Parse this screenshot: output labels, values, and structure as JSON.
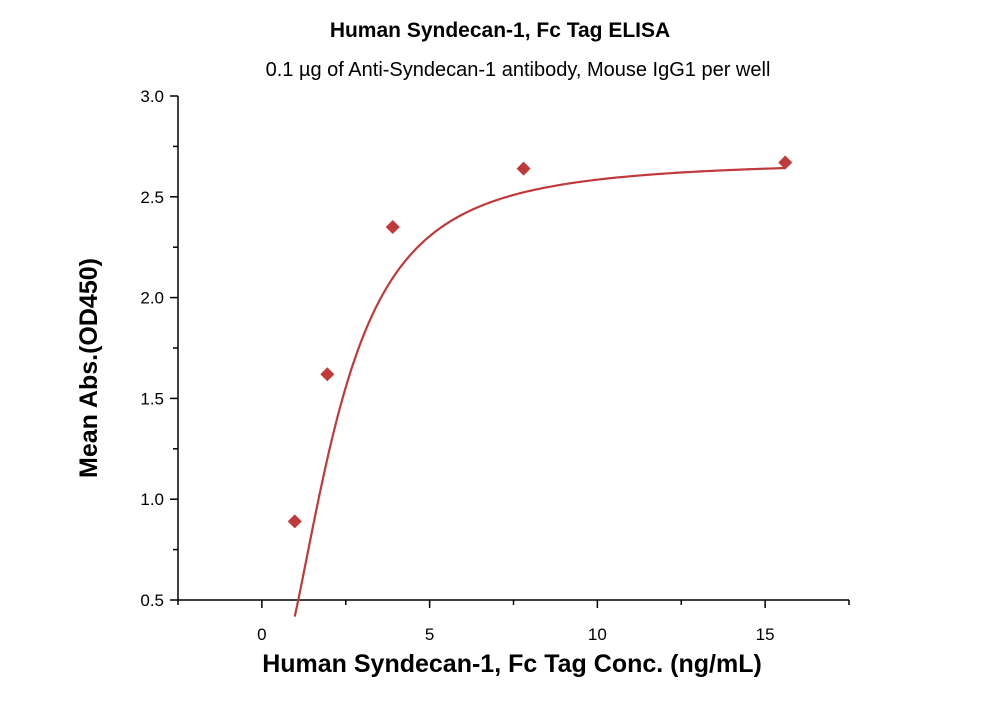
{
  "chart_data": {
    "type": "scatter",
    "title": "Human Syndecan-1, Fc Tag ELISA",
    "subtitle": "0.1 µg of Anti-Syndecan-1 antibody, Mouse IgG1 per well",
    "xlabel": "Human Syndecan-1, Fc Tag Conc. (ng/mL)",
    "ylabel": "Mean Abs.(OD450)",
    "xlim": [
      -2.5,
      17.5
    ],
    "ylim": [
      0.5,
      3.0
    ],
    "x_ticks": [
      0,
      5,
      10,
      15
    ],
    "x_tick_labels": [
      "0",
      "5",
      "10",
      "15"
    ],
    "y_ticks": [
      0.5,
      1.0,
      1.5,
      2.0,
      2.5,
      3.0
    ],
    "y_tick_labels": [
      "0.5",
      "1.0",
      "1.5",
      "2.0",
      "2.5",
      "3.0"
    ],
    "grid": false,
    "legend": "none",
    "series": [
      {
        "marker": "diamond",
        "color": "#c0393b",
        "x": [
          0.98,
          1.95,
          3.9,
          7.8,
          15.6
        ],
        "y": [
          0.89,
          1.62,
          2.35,
          2.64,
          2.67
        ],
        "fit": "four-parameter logistic"
      }
    ]
  }
}
